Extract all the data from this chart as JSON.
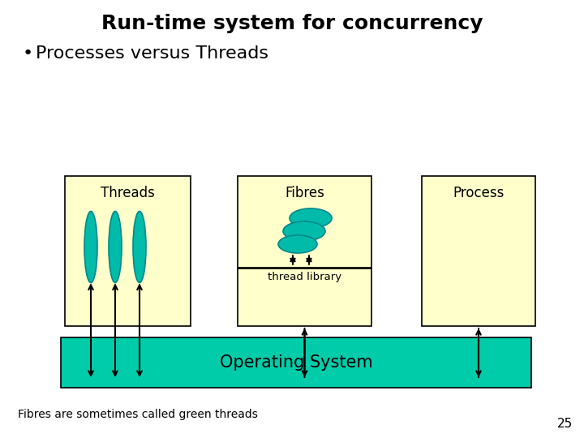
{
  "title": "Run-time system for concurrency",
  "bullet": "Processes versus Threads",
  "footnote": "Fibres are sometimes called green threads",
  "page_num": "25",
  "bg_color": "#ffffff",
  "box_fill": "#ffffcc",
  "box_edge": "#000000",
  "os_fill": "#00ccaa",
  "os_text": "Operating System",
  "teal_fill": "#00bbaa",
  "teal_edge": "#008888",
  "threads_label": "Threads",
  "fibres_label": "Fibres",
  "process_label": "Process",
  "thread_lib_label": "thread library",
  "title_fontsize": 18,
  "bullet_fontsize": 16,
  "label_fontsize": 12,
  "os_fontsize": 15,
  "footnote_fontsize": 10,
  "pagenum_fontsize": 11
}
